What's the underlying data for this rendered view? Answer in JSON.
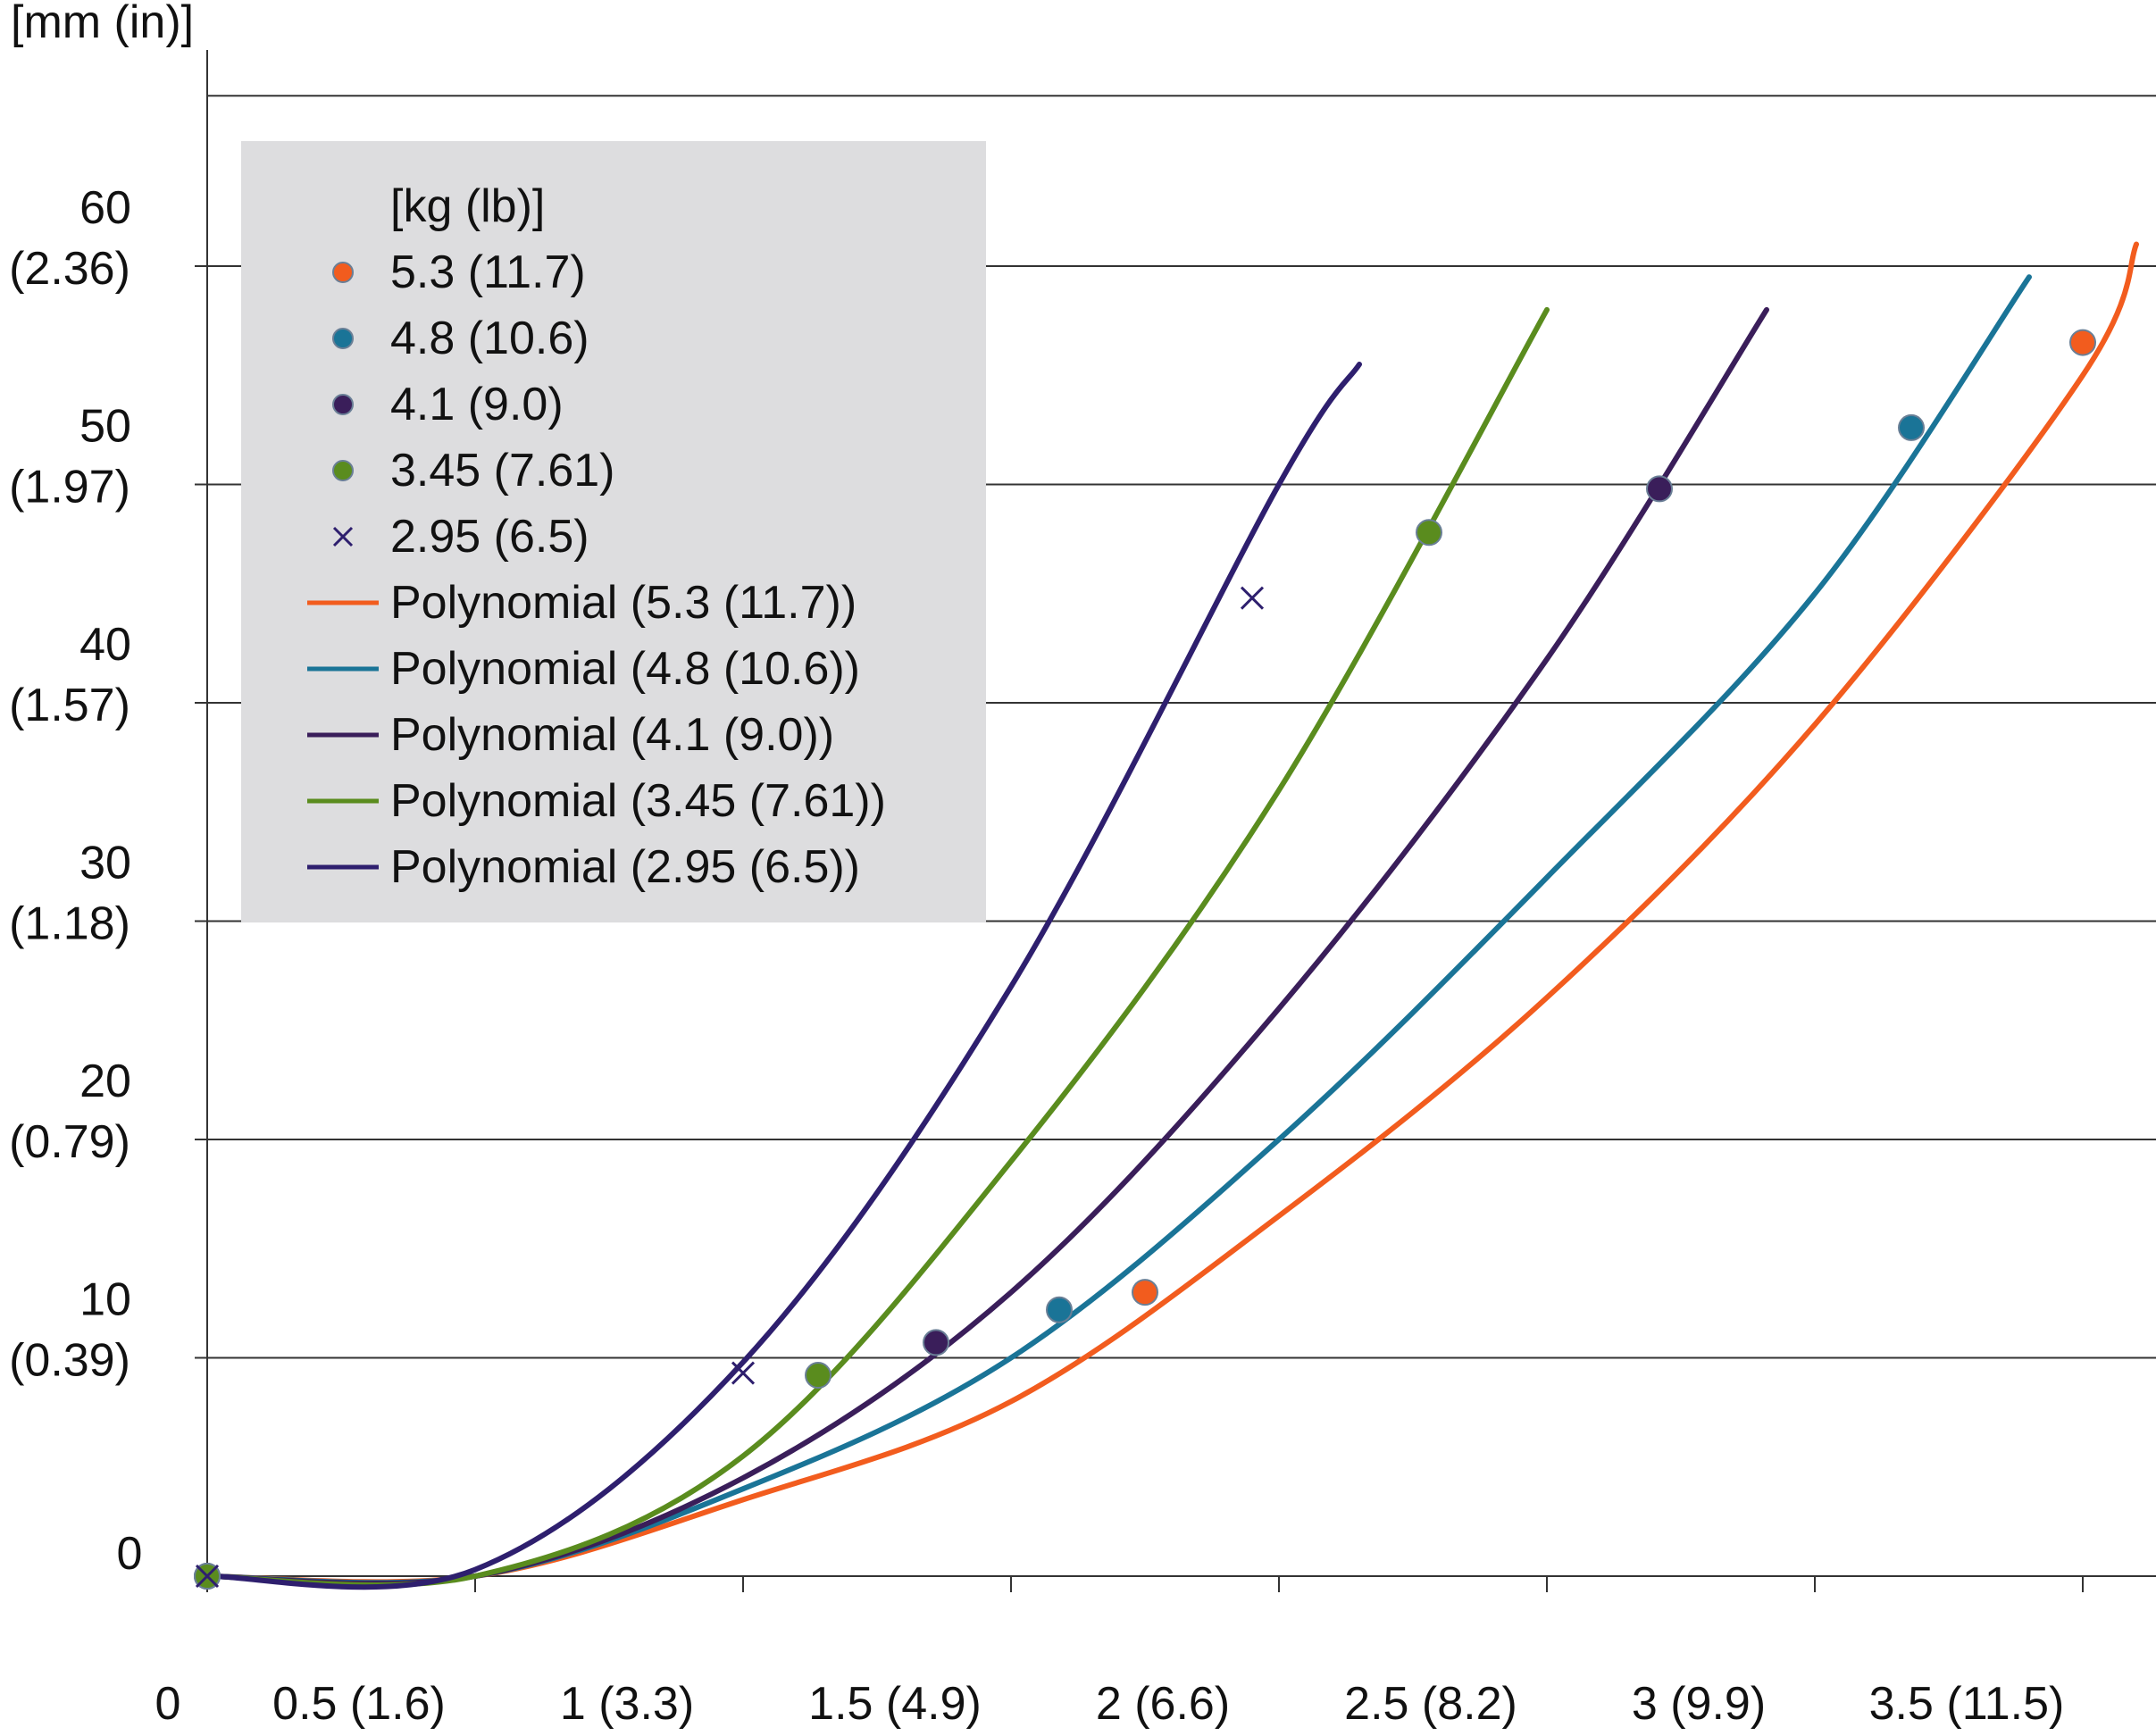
{
  "chart_data": {
    "type": "scatter",
    "y_unit_label": "[mm (in)]",
    "legend_title": "[kg (lb)]",
    "legend_position": "top-left",
    "grid": {
      "horizontal": true,
      "vertical": false
    },
    "xlim": [
      0,
      3.6
    ],
    "ylim": [
      0,
      70
    ],
    "x_ticks": [
      {
        "value": 0,
        "label": "0"
      },
      {
        "value": 0.5,
        "label": "0.5 (1.6)"
      },
      {
        "value": 1,
        "label": "1 (3.3)"
      },
      {
        "value": 1.5,
        "label": "1.5 (4.9)"
      },
      {
        "value": 2,
        "label": "2 (6.6)"
      },
      {
        "value": 2.5,
        "label": "2.5 (8.2)"
      },
      {
        "value": 3,
        "label": "3 (9.9)"
      },
      {
        "value": 3.5,
        "label": "3.5 (11.5)"
      }
    ],
    "y_ticks": [
      {
        "value": 0,
        "label": "0",
        "sublabel": ""
      },
      {
        "value": 10,
        "label": "10",
        "sublabel": "(0.39)"
      },
      {
        "value": 20,
        "label": "20",
        "sublabel": "(0.79)"
      },
      {
        "value": 30,
        "label": "30",
        "sublabel": "(1.18)"
      },
      {
        "value": 40,
        "label": "40",
        "sublabel": "(1.57)"
      },
      {
        "value": 50,
        "label": "50",
        "sublabel": "(1.97)"
      },
      {
        "value": 60,
        "label": "60",
        "sublabel": "(2.36)"
      }
    ],
    "series": [
      {
        "name": "5.3 (11.7)",
        "trend_name": "Polynomial (5.3 (11.7))",
        "color": "#f25c1e",
        "marker": "circle",
        "points": [
          [
            0,
            0
          ],
          [
            1.75,
            13
          ],
          [
            3.5,
            56.5
          ]
        ],
        "trend": [
          [
            0,
            0
          ],
          [
            0.5,
            0
          ],
          [
            1.0,
            3.5
          ],
          [
            1.5,
            8.0
          ],
          [
            2.0,
            16.5
          ],
          [
            2.5,
            26.5
          ],
          [
            3.0,
            39.0
          ],
          [
            3.5,
            55.0
          ],
          [
            3.6,
            61.0
          ]
        ]
      },
      {
        "name": "4.8 (10.6)",
        "trend_name": "Polynomial (4.8 (10.6))",
        "color": "#1a7497",
        "marker": "circle",
        "points": [
          [
            0,
            0
          ],
          [
            1.59,
            12.2
          ],
          [
            3.18,
            52.6
          ]
        ],
        "trend": [
          [
            0,
            0
          ],
          [
            0.5,
            0
          ],
          [
            1.0,
            4.0
          ],
          [
            1.5,
            10.0
          ],
          [
            2.0,
            20.0
          ],
          [
            2.5,
            32.0
          ],
          [
            3.0,
            45.0
          ],
          [
            3.4,
            59.5
          ]
        ]
      },
      {
        "name": "4.1 (9.0)",
        "trend_name": "Polynomial (4.1 (9.0))",
        "color": "#3a1e5a",
        "marker": "circle",
        "points": [
          [
            0,
            0
          ],
          [
            1.36,
            10.7
          ],
          [
            2.71,
            49.8
          ]
        ],
        "trend": [
          [
            0,
            0
          ],
          [
            0.5,
            0
          ],
          [
            1.0,
            4.5
          ],
          [
            1.5,
            13.0
          ],
          [
            2.0,
            26.0
          ],
          [
            2.5,
            42.0
          ],
          [
            2.91,
            58.0
          ]
        ]
      },
      {
        "name": "3.45 (7.61)",
        "trend_name": "Polynomial (3.45 (7.61))",
        "color": "#5a8c1e",
        "marker": "circle",
        "points": [
          [
            0,
            0
          ],
          [
            1.14,
            9.2
          ],
          [
            2.28,
            47.8
          ]
        ],
        "trend": [
          [
            0,
            0
          ],
          [
            0.5,
            0
          ],
          [
            1.0,
            5.5
          ],
          [
            1.5,
            19.0
          ],
          [
            2.0,
            36.0
          ],
          [
            2.5,
            58.0
          ]
        ]
      },
      {
        "name": "2.95 (6.5)",
        "trend_name": "Polynomial (2.95 (6.5))",
        "color": "#2e1f6e",
        "marker": "cross",
        "points": [
          [
            0,
            0
          ],
          [
            1.0,
            9.3
          ],
          [
            1.95,
            44.8
          ]
        ],
        "trend": [
          [
            0,
            0
          ],
          [
            0.5,
            0.3
          ],
          [
            1.0,
            9.8
          ],
          [
            1.5,
            27.0
          ],
          [
            2.0,
            50.0
          ],
          [
            2.15,
            55.5
          ]
        ]
      }
    ]
  }
}
